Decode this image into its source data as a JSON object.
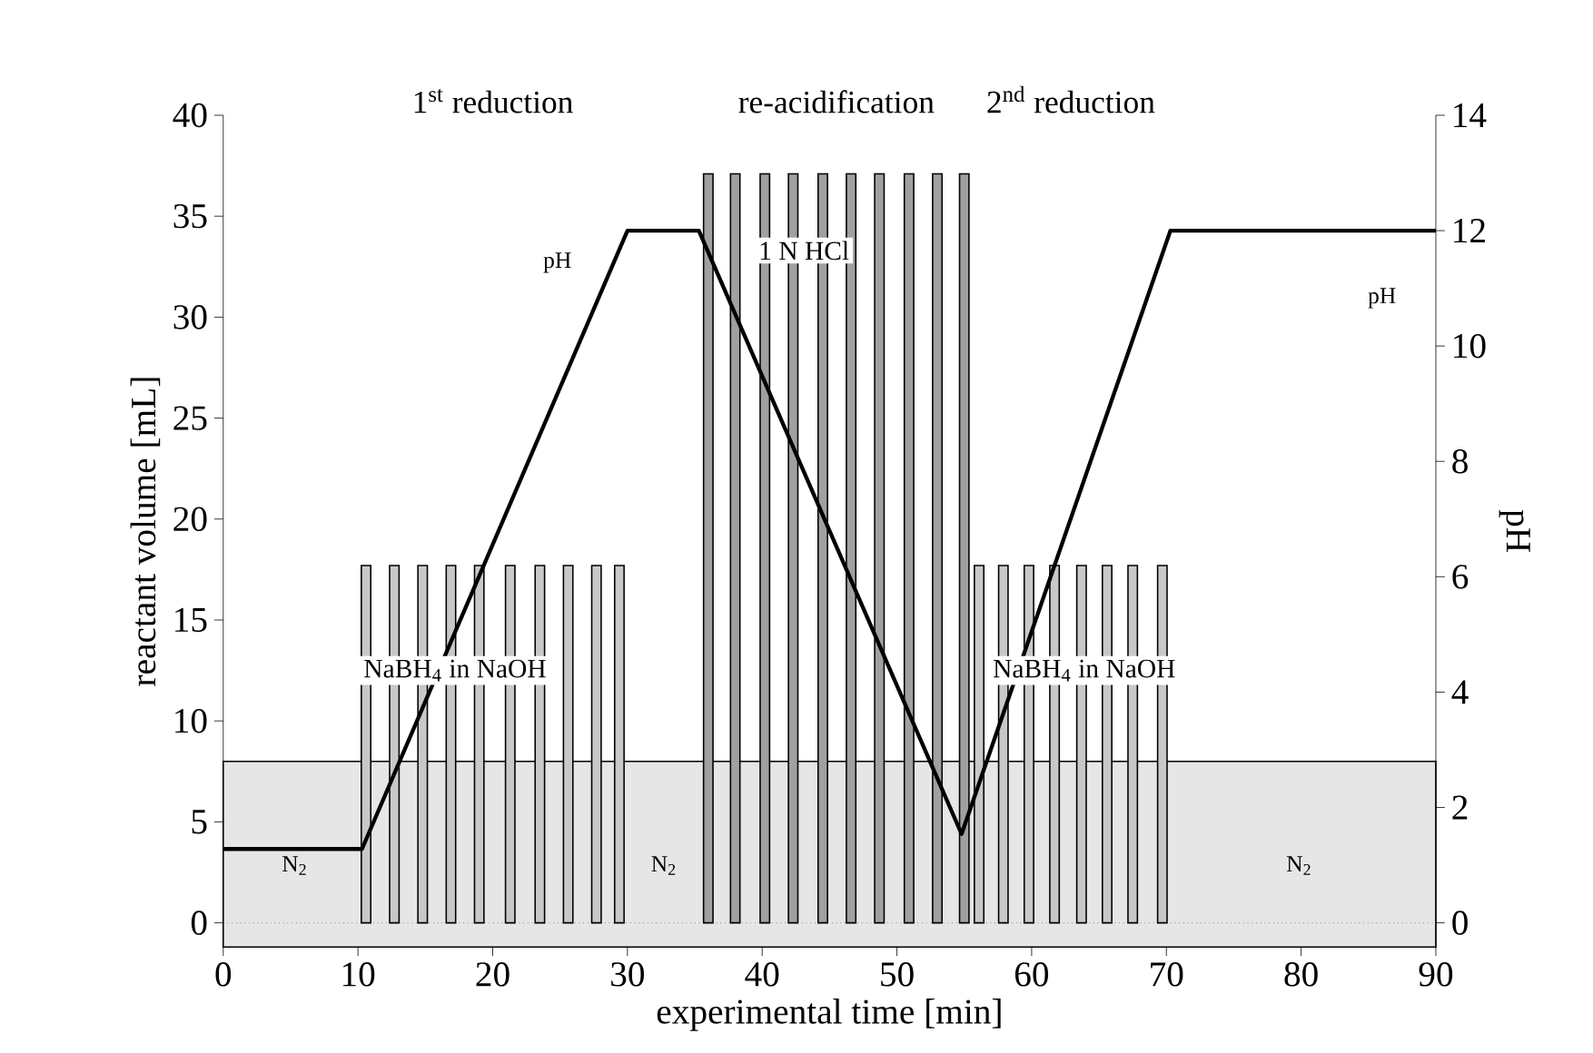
{
  "chart_data": {
    "type": "bar",
    "xlabel": "experimental time [min]",
    "ylabel": "reactant volume [mL]",
    "y2label": "pH",
    "xlim": [
      0,
      90
    ],
    "xticks": [
      0,
      10,
      20,
      30,
      40,
      50,
      60,
      70,
      80,
      90
    ],
    "ylim": [
      -1.2,
      40
    ],
    "yticks": [
      0,
      5,
      10,
      15,
      20,
      25,
      30,
      35,
      40
    ],
    "y2lim": [
      -0.42,
      14
    ],
    "y2ticks": [
      0,
      2,
      4,
      6,
      8,
      10,
      12,
      14
    ],
    "series": [
      {
        "color": "#c8c8c8",
        "x": [
          10.6,
          12.7,
          14.8,
          16.9,
          19.0,
          21.3,
          23.5,
          25.6,
          27.7,
          29.4
        ],
        "values": [
          17.7,
          17.7,
          17.7,
          17.7,
          17.7,
          17.7,
          17.7,
          17.7,
          17.7,
          17.7
        ]
      },
      {
        "color": "#a0a0a0",
        "x": [
          36.0,
          38.0,
          40.2,
          42.3,
          44.5,
          46.6,
          48.7,
          50.9,
          53.0,
          55.0
        ],
        "values": [
          37.1,
          37.1,
          37.1,
          37.1,
          37.1,
          37.1,
          37.1,
          37.1,
          37.1,
          37.1
        ]
      },
      {
        "color": "#c8c8c8",
        "x": [
          56.1,
          57.9,
          59.8,
          61.7,
          63.7,
          65.6,
          67.5,
          69.7
        ],
        "values": [
          17.7,
          17.7,
          17.7,
          17.7,
          17.7,
          17.7,
          17.7,
          17.7
        ]
      },
      {
        "type": "line",
        "axis": "y2",
        "name": "pH",
        "color": "#000000",
        "x": [
          0,
          10.3,
          30,
          35.3,
          54.8,
          70.3,
          90
        ],
        "values": [
          1.28,
          1.28,
          12,
          12,
          1.54,
          12,
          12
        ]
      }
    ],
    "bands": [
      {
        "axis": "y",
        "from": -1.2,
        "to": 8,
        "color": "#e6e6e6",
        "label": "N$_{2}$"
      }
    ],
    "ref_lines": [
      {
        "axis": "y",
        "value": 0,
        "line_style": "dotted",
        "color": "#555555"
      }
    ],
    "annotations": [
      "1$^{st}$ reduction",
      "re-acidification",
      "2$^{nd}$ reduction",
      {
        "text": "1 N HCl",
        "x": 43.1,
        "y": 33.3
      },
      {
        "text": "NaBH$_{4}$ in NaOH",
        "x": 17.2,
        "y": 12.5
      },
      {
        "text": "NaBH$_{4}$ in NaOH",
        "x": 63.9,
        "y": 12.5
      },
      {
        "text": "pH",
        "x": 24.8,
        "y": 32.7
      }
    ]
  }
}
